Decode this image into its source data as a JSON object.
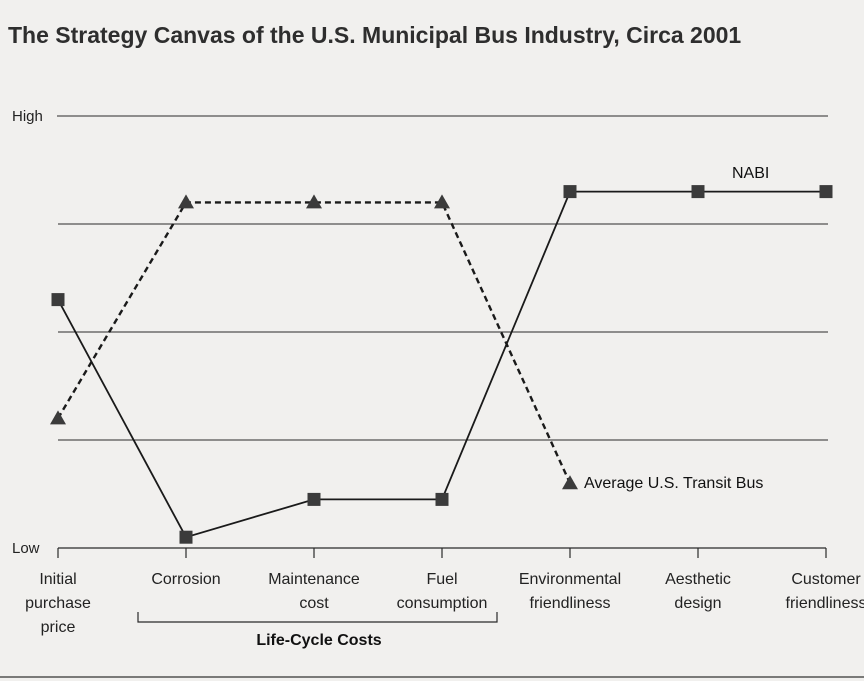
{
  "chart_data": {
    "type": "line",
    "title": "The Strategy Canvas of the U.S. Municipal Bus Industry, Circa 2001",
    "y_axis": {
      "top_label": "High",
      "bottom_label": "Low",
      "ylim": [
        0,
        4
      ]
    },
    "grid": true,
    "categories": [
      [
        "Initial",
        "purchase",
        "price"
      ],
      [
        "Corrosion"
      ],
      [
        "Maintenance",
        "cost"
      ],
      [
        "Fuel",
        "consumption"
      ],
      [
        "Environmental",
        "friendliness"
      ],
      [
        "Aesthetic",
        "design"
      ],
      [
        "Customer",
        "friendliness"
      ]
    ],
    "series": [
      {
        "name": "NABI",
        "style": "solid",
        "marker": "square",
        "values": [
          2.3,
          0.1,
          0.45,
          0.45,
          3.3,
          3.3,
          3.3
        ]
      },
      {
        "name": "Average U.S. Transit Bus",
        "style": "dashed",
        "marker": "triangle",
        "values": [
          1.2,
          3.2,
          3.2,
          3.2,
          0.6,
          null,
          null
        ]
      }
    ],
    "bracket_label": "Life-Cycle Costs",
    "bracket_span": [
      "Corrosion",
      "Fuel consumption"
    ]
  }
}
